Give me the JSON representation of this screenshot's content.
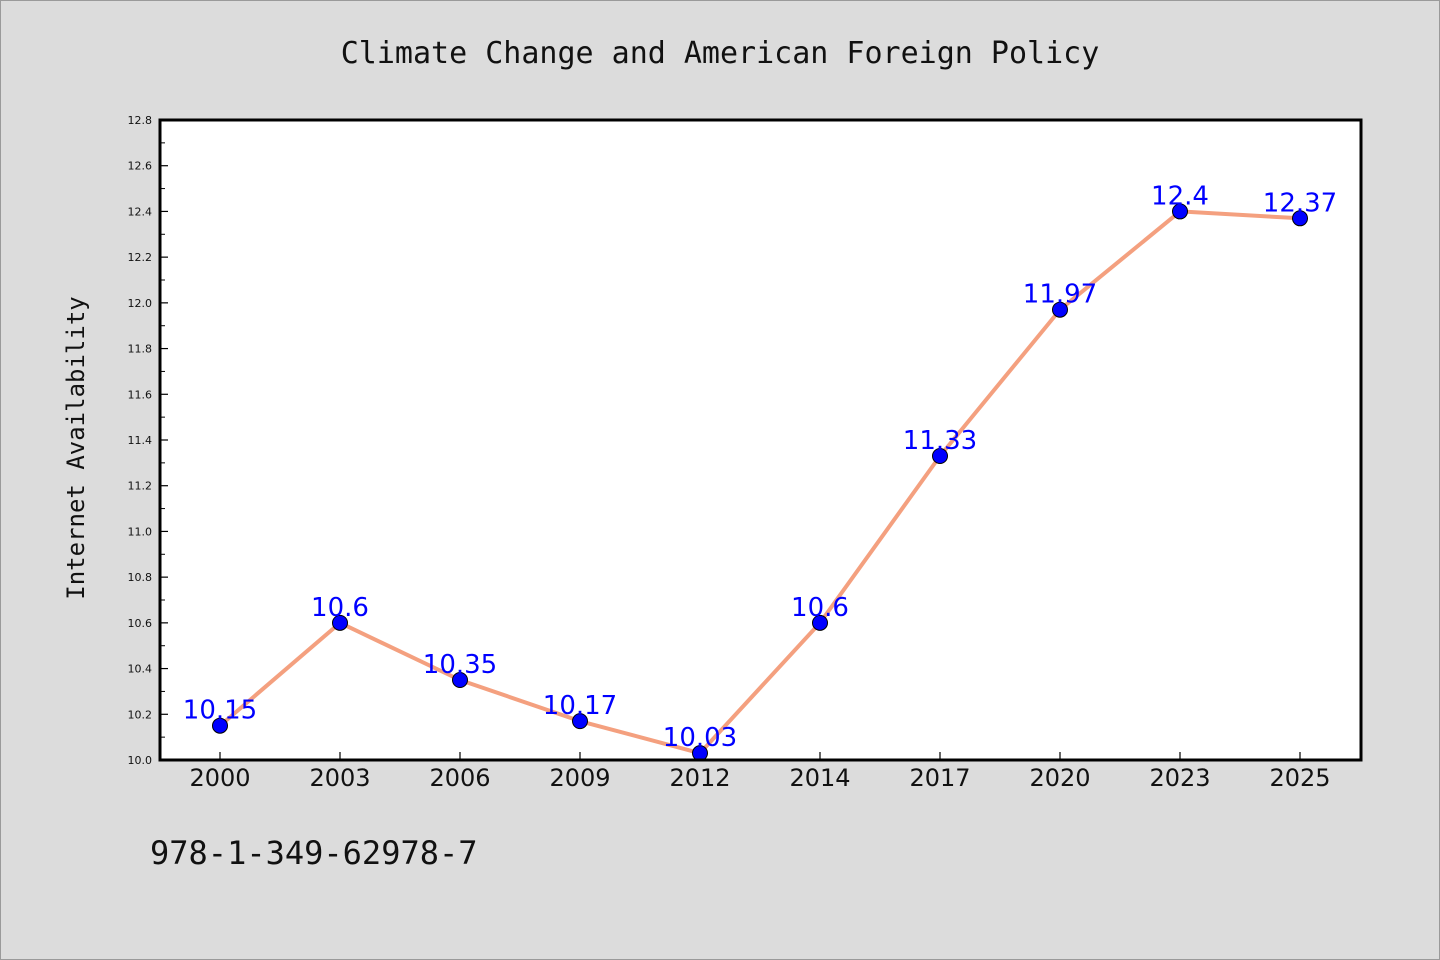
{
  "chart_data": {
    "type": "line",
    "title": "Climate Change and American Foreign Policy",
    "xlabel": "",
    "ylabel": "Internet Availability",
    "categories": [
      "2000",
      "2003",
      "2006",
      "2009",
      "2012",
      "2014",
      "2017",
      "2020",
      "2023",
      "2025"
    ],
    "series": [
      {
        "values": [
          10.15,
          10.6,
          10.35,
          10.17,
          10.03,
          10.6,
          11.33,
          11.97,
          12.4,
          12.37
        ],
        "data_labels": [
          "10.15",
          "10.6",
          "10.35",
          "10.17",
          "10.03",
          "10.6",
          "11.33",
          "11.97",
          "12.4",
          "12.37"
        ],
        "line_color": "#f4a07f",
        "marker_color": "#0000ff"
      }
    ],
    "ylim": [
      10.0,
      12.8
    ],
    "y_ticks": [
      "10.0",
      "10.2",
      "10.4",
      "10.6",
      "10.8",
      "11.0",
      "11.2",
      "11.4",
      "11.6",
      "11.8",
      "12.0",
      "12.2",
      "12.4",
      "12.6",
      "12.8"
    ],
    "grid": false,
    "legend": "none"
  },
  "footer": {
    "isbn": "978-1-349-62978-7"
  },
  "colors": {
    "background": "#dcdcdc",
    "plot_background": "#ffffff",
    "line": "#f4a07f",
    "marker": "#0000ff",
    "data_label": "#0000ff"
  }
}
